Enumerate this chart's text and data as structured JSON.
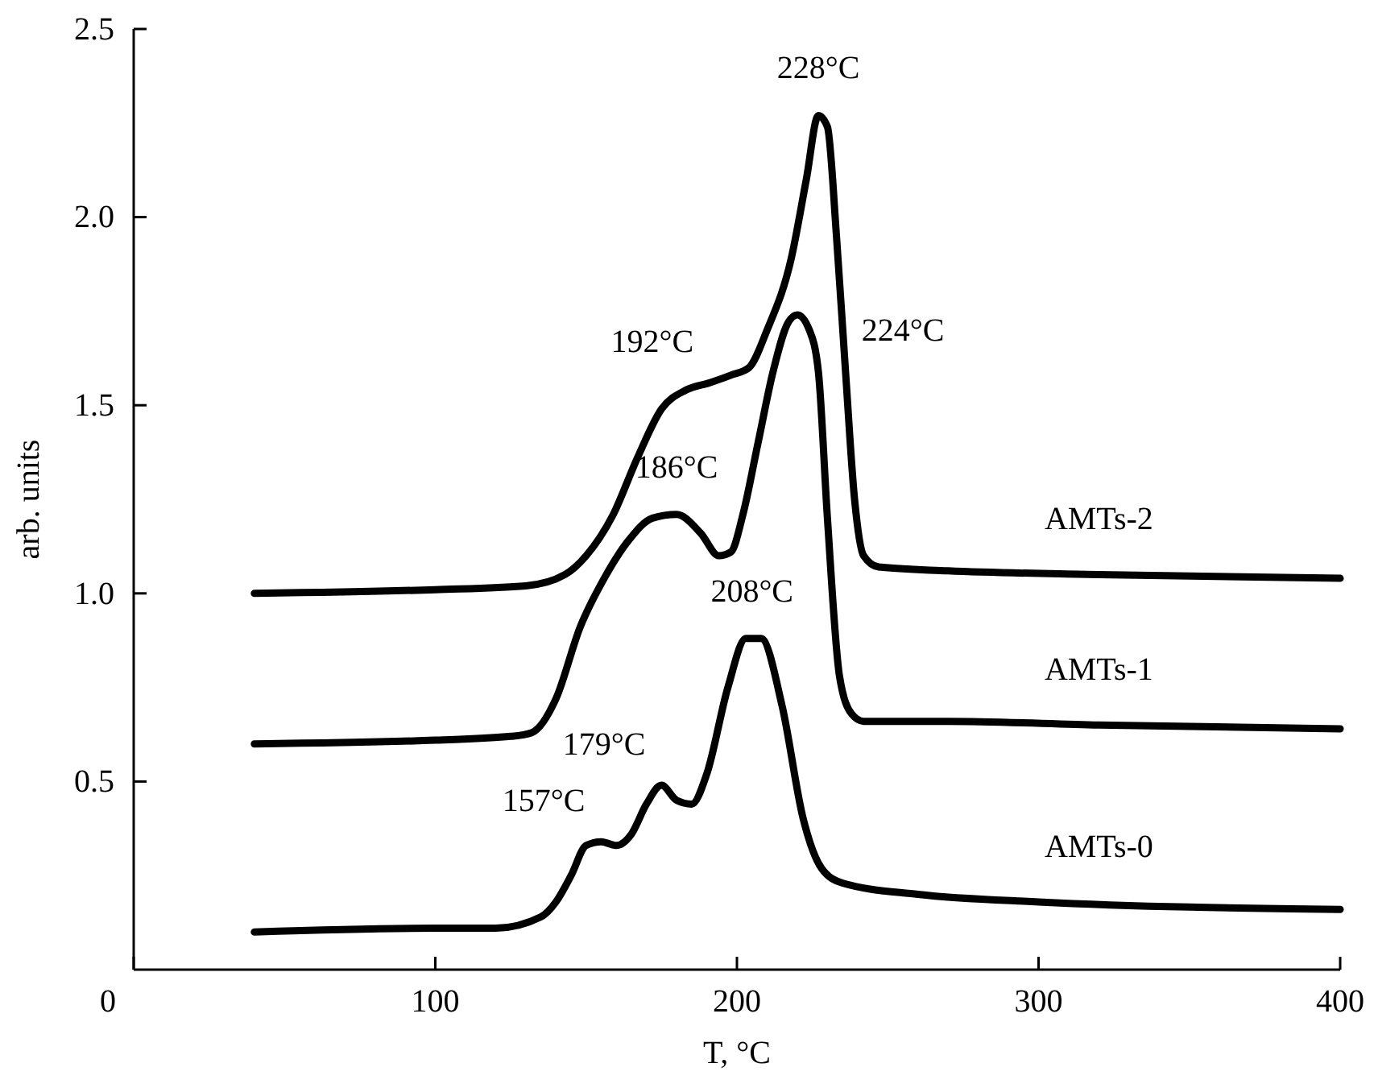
{
  "chart_data": {
    "type": "line",
    "xlabel": "T, °C",
    "ylabel": "arb. units",
    "xlim": [
      0,
      400
    ],
    "ylim": [
      0,
      2.5
    ],
    "xticks": [
      0,
      100,
      200,
      300,
      400
    ],
    "yticks": [
      {
        "value": 0.5,
        "label": "0.5"
      },
      {
        "value": 1,
        "label": "1.0"
      },
      {
        "value": 1.5,
        "label": "1.5"
      },
      {
        "value": 2,
        "label": "2.0"
      },
      {
        "value": 2.5,
        "label": "2.5"
      }
    ],
    "grid": false,
    "legend": false,
    "marker": "none",
    "line_style": "solid",
    "series": [
      {
        "name": "AMTs-2",
        "color": "#000000",
        "x": [
          40,
          100,
          130,
          143,
          150,
          159,
          167,
          175,
          183,
          191,
          198,
          204,
          210,
          218,
          223,
          227,
          230,
          233,
          236,
          239,
          242,
          247,
          270,
          320,
          400
        ],
        "values": [
          1.0,
          1.01,
          1.02,
          1.05,
          1.1,
          1.21,
          1.36,
          1.49,
          1.54,
          1.56,
          1.58,
          1.6,
          1.7,
          1.89,
          2.1,
          2.27,
          2.24,
          1.95,
          1.59,
          1.25,
          1.1,
          1.07,
          1.06,
          1.05,
          1.04
        ]
      },
      {
        "name": "AMTs-1",
        "color": "#000000",
        "x": [
          40,
          100,
          125,
          132,
          140,
          148,
          156,
          164,
          172,
          180,
          188,
          194,
          198,
          202,
          207,
          212,
          217,
          220,
          224,
          227,
          230,
          234,
          238,
          242,
          270,
          320,
          400
        ],
        "values": [
          0.6,
          0.61,
          0.62,
          0.63,
          0.72,
          0.91,
          1.04,
          1.14,
          1.2,
          1.21,
          1.16,
          1.1,
          1.11,
          1.21,
          1.4,
          1.59,
          1.72,
          1.74,
          1.7,
          1.59,
          1.2,
          0.78,
          0.68,
          0.66,
          0.66,
          0.65,
          0.64
        ]
      },
      {
        "name": "AMTs-0",
        "color": "#000000",
        "x": [
          40,
          100,
          120,
          135,
          140,
          145,
          150,
          155,
          160,
          165,
          170,
          175,
          180,
          185,
          190,
          197,
          203,
          208,
          215,
          222,
          228,
          235,
          260,
          300,
          400
        ],
        "values": [
          0.1,
          0.11,
          0.11,
          0.14,
          0.18,
          0.25,
          0.33,
          0.34,
          0.33,
          0.36,
          0.44,
          0.49,
          0.45,
          0.44,
          0.52,
          0.75,
          0.88,
          0.88,
          0.7,
          0.4,
          0.27,
          0.23,
          0.2,
          0.18,
          0.16
        ]
      }
    ],
    "annotations": [
      {
        "text": "228°C",
        "x": 227,
        "y": 2.27
      },
      {
        "text": "192°C",
        "x": 191,
        "y": 1.56
      },
      {
        "text": "224°C",
        "x": 236,
        "y": 1.59
      },
      {
        "text": "186°C",
        "x": 180,
        "y": 1.21
      },
      {
        "text": "208°C",
        "x": 205,
        "y": 0.88
      },
      {
        "text": "179°C",
        "x": 175,
        "y": 0.49
      },
      {
        "text": "157°C",
        "x": 155,
        "y": 0.34
      }
    ]
  }
}
